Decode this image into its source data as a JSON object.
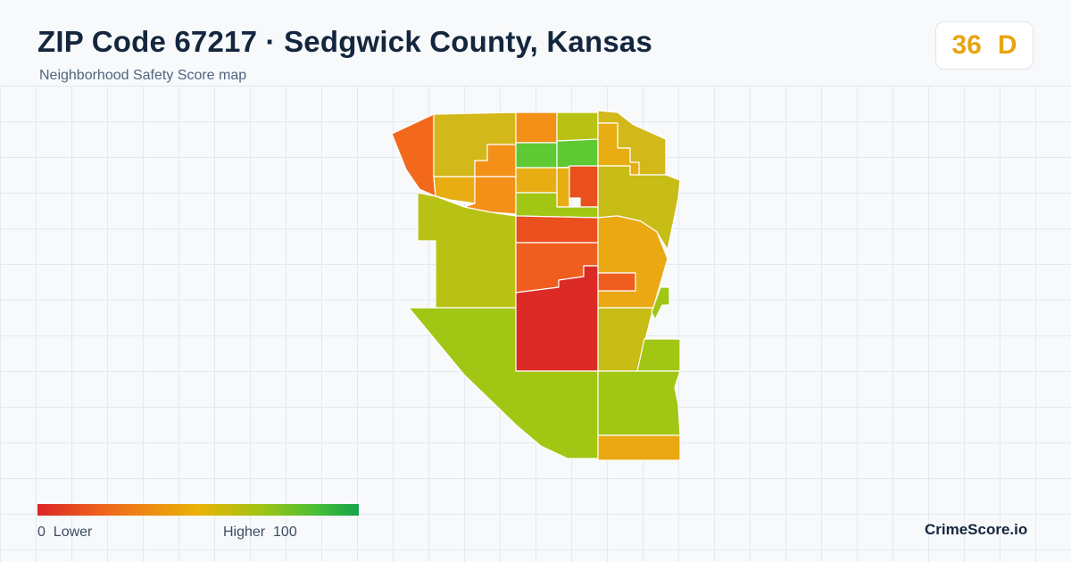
{
  "header": {
    "title": "ZIP Code 67217 · Sedgwick County, Kansas",
    "subtitle": "Neighborhood Safety Score map"
  },
  "score": {
    "value": "36",
    "grade": "D",
    "color": "#e8a512"
  },
  "legend": {
    "min_value": "0",
    "min_label": "Lower",
    "max_label": "Higher",
    "max_value": "100",
    "colors": [
      "#dc2626",
      "#ef6a1c",
      "#eab308",
      "#9ec414",
      "#4cc036",
      "#16a34a"
    ]
  },
  "brand": "CrimeScore.io",
  "map_regions_colors": {
    "red": "#dc2626",
    "red_orange": "#ea5a1e",
    "orange": "#f39018",
    "amber": "#e8ad12",
    "mustard": "#d2b818",
    "yellow_green": "#b8c214",
    "lime": "#a1c614",
    "green": "#5ec932"
  }
}
